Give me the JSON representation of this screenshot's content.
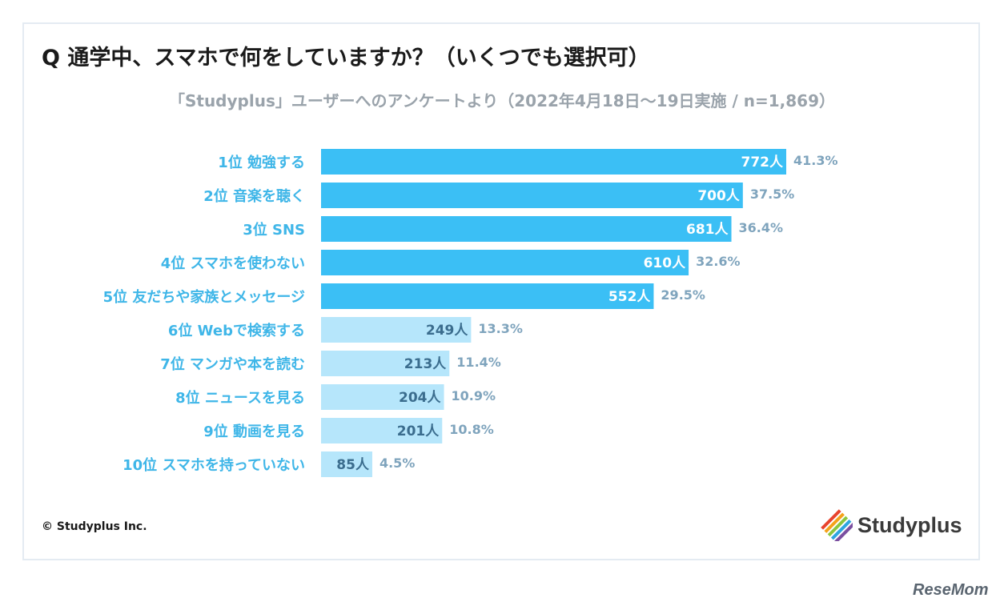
{
  "header": {
    "title": "Q 通学中、スマホで何をしていますか？（いくつでも選択可）",
    "subtitle": "「Studyplus」ユーザーへのアンケートより（2022年4月18日〜19日実施 / n=1,869）"
  },
  "footer": {
    "copyright": "© Studyplus Inc.",
    "logo_text": "Studyplus",
    "watermark": "ReseMom"
  },
  "colors": {
    "top5_bar": "#3bbff5",
    "rest_bar": "#b6e6fb"
  },
  "chart_data": {
    "type": "bar",
    "orientation": "horizontal",
    "title": "Q 通学中、スマホで何をしていますか？（いくつでも選択可）",
    "subtitle": "「Studyplus」ユーザーへのアンケートより（2022年4月18日〜19日実施 / n=1,869）",
    "categories": [
      "1位 勉強する",
      "2位 音楽を聴く",
      "3位 SNS",
      "4位 スマホを使わない",
      "5位 友だちや家族とメッセージ",
      "6位 Webで検索する",
      "7位 マンガや本を読む",
      "8位 ニュースを見る",
      "9位 動画を見る",
      "10位 スマホを持っていない"
    ],
    "values": [
      772,
      700,
      681,
      610,
      552,
      249,
      213,
      204,
      201,
      85
    ],
    "value_labels": [
      "772人",
      "700人",
      "681人",
      "610人",
      "552人",
      "249人",
      "213人",
      "204人",
      "201人",
      "85人"
    ],
    "percent_labels": [
      "41.3%",
      "37.5%",
      "36.4%",
      "32.6%",
      "29.5%",
      "13.3%",
      "11.4%",
      "10.9%",
      "10.8%",
      "4.5%"
    ],
    "highlight_count": 5,
    "grid": false,
    "legend": "none"
  }
}
